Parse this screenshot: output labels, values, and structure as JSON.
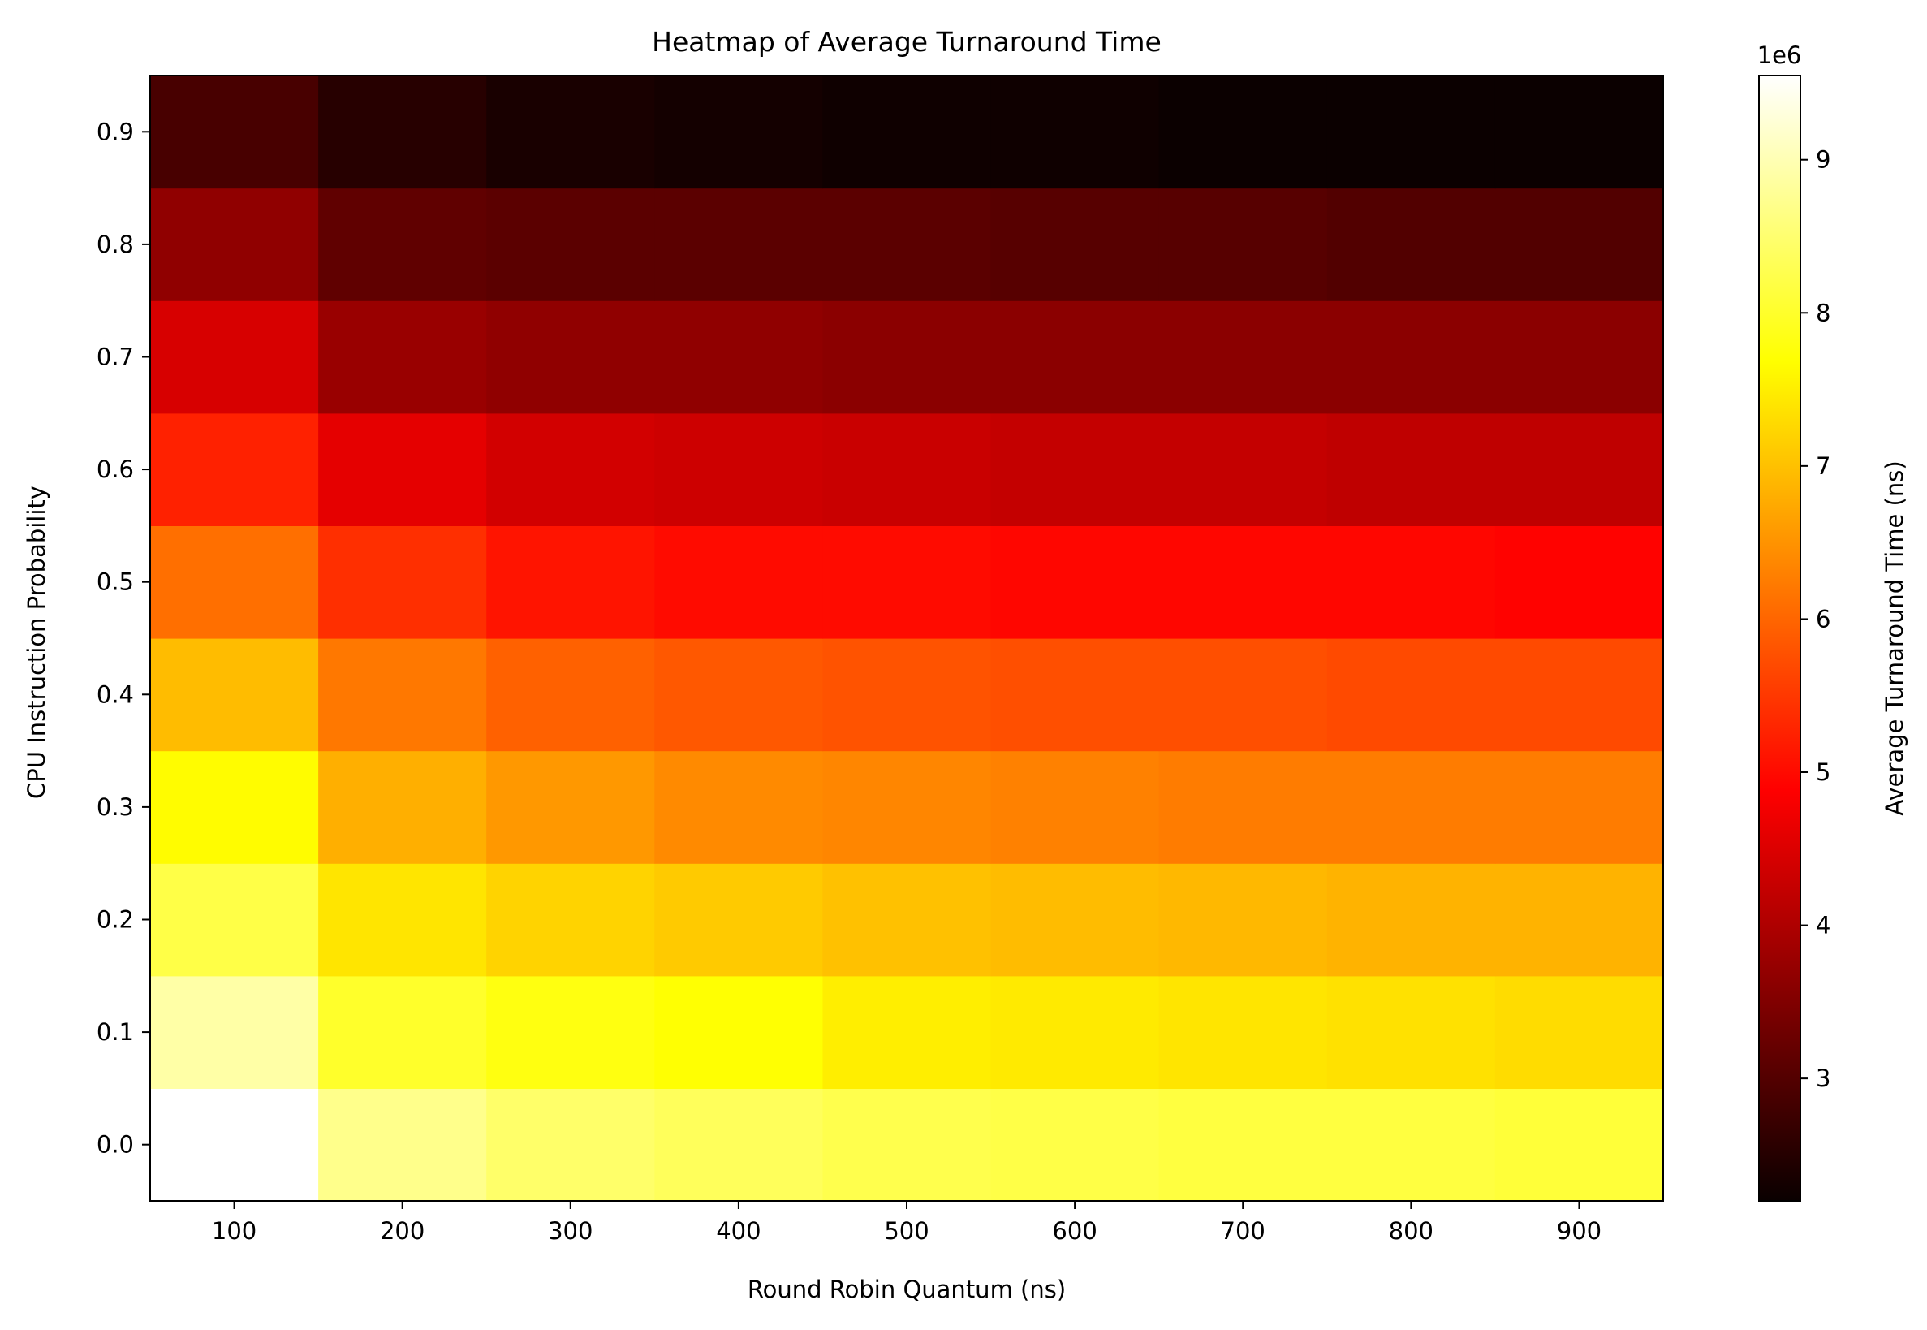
{
  "chart_data": {
    "type": "heatmap",
    "title": "Heatmap of Average Turnaround Time",
    "xlabel": "Round Robin Quantum (ns)",
    "ylabel": "CPU Instruction Probability",
    "x": [
      100,
      200,
      300,
      400,
      500,
      600,
      700,
      800,
      900
    ],
    "x_tick_labels": [
      "100",
      "200",
      "300",
      "400",
      "500",
      "600",
      "700",
      "800",
      "900"
    ],
    "y": [
      0.0,
      0.1,
      0.2,
      0.3,
      0.4,
      0.5,
      0.6,
      0.7,
      0.8,
      0.9
    ],
    "y_tick_labels": [
      "0.0",
      "0.1",
      "0.2",
      "0.3",
      "0.4",
      "0.5",
      "0.6",
      "0.7",
      "0.8",
      "0.9"
    ],
    "xlim": [
      50,
      950
    ],
    "ylim": [
      -0.05,
      0.95
    ],
    "colormap": "hot",
    "colorbar": {
      "label": "Average Turnaround Time (ns)",
      "offset_text": "1e6",
      "range": [
        2200000,
        9550000
      ],
      "ticks": [
        3,
        4,
        5,
        6,
        7,
        8,
        9
      ],
      "tick_labels": [
        "3",
        "4",
        "5",
        "6",
        "7",
        "8",
        "9"
      ],
      "tick_scale": 1000000
    },
    "values": [
      [
        9550000,
        8700000,
        8450000,
        8350000,
        8250000,
        8200000,
        8150000,
        8150000,
        8100000
      ],
      [
        8900000,
        8000000,
        7800000,
        7700000,
        7500000,
        7450000,
        7400000,
        7350000,
        7300000
      ],
      [
        8200000,
        7400000,
        7200000,
        7100000,
        7000000,
        6950000,
        6900000,
        6850000,
        6850000
      ],
      [
        7650000,
        6800000,
        6550000,
        6400000,
        6350000,
        6300000,
        6250000,
        6250000,
        6250000
      ],
      [
        6950000,
        6200000,
        5950000,
        5850000,
        5800000,
        5750000,
        5750000,
        5700000,
        5700000
      ],
      [
        6100000,
        5400000,
        5100000,
        5000000,
        5000000,
        4950000,
        4950000,
        4950000,
        4900000
      ],
      [
        5250000,
        4500000,
        4300000,
        4250000,
        4200000,
        4150000,
        4150000,
        4100000,
        4100000
      ],
      [
        4350000,
        3700000,
        3600000,
        3600000,
        3550000,
        3550000,
        3550000,
        3550000,
        3550000
      ],
      [
        3600000,
        3100000,
        3050000,
        3050000,
        3050000,
        3000000,
        3000000,
        2950000,
        2950000
      ],
      [
        2850000,
        2500000,
        2350000,
        2300000,
        2250000,
        2250000,
        2200000,
        2200000,
        2200000
      ]
    ]
  }
}
